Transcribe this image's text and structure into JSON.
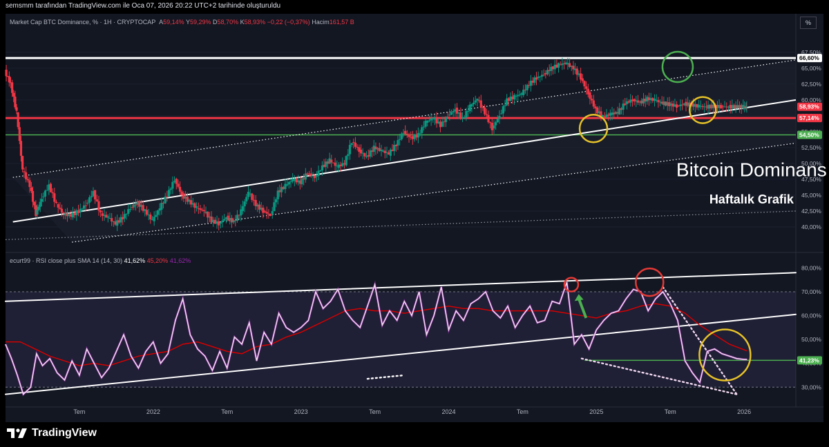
{
  "header": {
    "caption": "semsmm tarafından TradingView.com ile Oca 07, 2026 20:22 UTC+2 tarihinde oluşturuldu",
    "unit_button": "%"
  },
  "main_legend": {
    "title": "Market Cap BTC Dominance, % · 1H · CRYPTOCAP",
    "a_label": "A",
    "a_value": "59,14%",
    "y_label": "Y",
    "y_value": "59,29%",
    "d_label": "D",
    "d_value": "58,70%",
    "k_label": "K",
    "k_value": "58,93%",
    "change": "−0,22 (−0,37%)",
    "volume_label": "Hacim",
    "volume_value": "161,57 B"
  },
  "rsi_legend": {
    "title": "ecurt99 · RSI close plus SMA 14 (14, 30)",
    "v1": "41,62%",
    "v2": "45,20%",
    "v3": "41,62%"
  },
  "brand": {
    "name": "TradingView"
  },
  "colors": {
    "up": "#089981",
    "down": "#f23645",
    "accent_red": "#f23645",
    "accent_green": "#4caf50",
    "rsi_line": "#f1d9f0",
    "rsi_sma": "#d50000",
    "circle_green": "#4caf50",
    "circle_yellow": "#e6c229",
    "circle_red": "#e53935",
    "background": "#131722"
  },
  "chart_data": [
    {
      "type": "candlestick",
      "title": "Market Cap BTC Dominance, % · 1H · CRYPTOCAP",
      "y_unit": "%",
      "ylim": [
        37.5,
        69.0
      ],
      "y_ticks": [
        "40,00%",
        "42,50%",
        "45,00%",
        "47,50%",
        "50,00%",
        "52,50%",
        "55,00%",
        "57,50%",
        "60,00%",
        "62,50%",
        "65,00%",
        "67,50%"
      ],
      "price_labels": [
        {
          "text": "66,60%",
          "value": 66.6,
          "color": "#ffffff",
          "text_color": "#000000"
        },
        {
          "text": "58,93%",
          "value": 58.93,
          "color": "#f23645",
          "text_color": "#ffffff"
        },
        {
          "text": "57,14%",
          "value": 57.14,
          "color": "#f23645",
          "text_color": "#ffffff"
        },
        {
          "text": "54,50%",
          "value": 54.5,
          "color": "#4caf50",
          "text_color": "#ffffff"
        }
      ],
      "horizontal_levels": [
        {
          "value": 66.6,
          "color": "#ffffff"
        },
        {
          "value": 57.14,
          "color": "#f23645"
        },
        {
          "value": 54.5,
          "color": "#4caf50"
        }
      ],
      "x_ticks": [
        "Tem",
        "2022",
        "Tem",
        "2023",
        "Tem",
        "2024",
        "Tem",
        "2025",
        "Tem",
        "2026"
      ],
      "x_tick_dates": [
        2021.5,
        2022.0,
        2022.5,
        2023.0,
        2023.5,
        2024.0,
        2024.5,
        2025.0,
        2025.5,
        2026.0
      ],
      "x_range": [
        2021.0,
        2026.35
      ],
      "trend_lines": [
        {
          "style": "solid",
          "color": "#ffffff",
          "from": [
            2021.05,
            40.8
          ],
          "to": [
            2026.35,
            60.0
          ]
        },
        {
          "style": "dotted",
          "color": "#ffffff",
          "from": [
            2021.05,
            47.8
          ],
          "to": [
            2026.35,
            66.3
          ]
        },
        {
          "style": "dotted",
          "color": "#ffffff",
          "from": [
            2021.45,
            37.6
          ],
          "to": [
            2026.35,
            53.2
          ]
        },
        {
          "style": "dotted",
          "color": "#9598a1",
          "from": [
            2021.0,
            38.0
          ],
          "to": [
            2026.35,
            42.5
          ]
        }
      ],
      "annotations": [
        {
          "text": "Bitcoin Dominans",
          "x": 2026.05,
          "value": 48.0,
          "size": 28
        },
        {
          "text": "Haftalık Grafik",
          "x": 2026.05,
          "value": 43.7,
          "size": 18
        }
      ],
      "circles": [
        {
          "x": 2025.55,
          "value": 65.2,
          "r": 22,
          "color": "#4caf50"
        },
        {
          "x": 2024.98,
          "value": 55.5,
          "r": 20,
          "color": "#e6c229"
        },
        {
          "x": 2025.72,
          "value": 58.4,
          "r": 19,
          "color": "#e6c229"
        }
      ],
      "series": [
        {
          "name": "BTC Dominance",
          "x": [
            2021.0,
            2021.04,
            2021.08,
            2021.12,
            2021.17,
            2021.21,
            2021.25,
            2021.3,
            2021.35,
            2021.4,
            2021.45,
            2021.5,
            2021.55,
            2021.6,
            2021.65,
            2021.7,
            2021.75,
            2021.8,
            2021.85,
            2021.9,
            2021.95,
            2022.0,
            2022.05,
            2022.1,
            2022.15,
            2022.2,
            2022.25,
            2022.3,
            2022.35,
            2022.4,
            2022.45,
            2022.5,
            2022.55,
            2022.6,
            2022.65,
            2022.7,
            2022.75,
            2022.8,
            2022.85,
            2022.9,
            2022.95,
            2023.0,
            2023.05,
            2023.1,
            2023.15,
            2023.2,
            2023.25,
            2023.3,
            2023.35,
            2023.4,
            2023.45,
            2023.5,
            2023.55,
            2023.6,
            2023.65,
            2023.7,
            2023.75,
            2023.8,
            2023.85,
            2023.9,
            2023.95,
            2024.0,
            2024.05,
            2024.1,
            2024.15,
            2024.2,
            2024.25,
            2024.3,
            2024.35,
            2024.4,
            2024.45,
            2024.5,
            2024.55,
            2024.6,
            2024.65,
            2024.7,
            2024.75,
            2024.8,
            2024.85,
            2024.9,
            2024.95,
            2025.0,
            2025.05,
            2025.1,
            2025.15,
            2025.2,
            2025.25,
            2025.3,
            2025.35,
            2025.4,
            2025.45,
            2025.5,
            2025.55,
            2025.6,
            2025.65,
            2025.7,
            2025.75,
            2025.8,
            2025.85,
            2025.9,
            2025.95,
            2026.0,
            2026.02
          ],
          "y": [
            64.5,
            62.5,
            58.0,
            49.0,
            46.5,
            42.0,
            44.5,
            46.5,
            43.5,
            42.0,
            41.8,
            42.5,
            43.5,
            45.5,
            42.0,
            41.5,
            40.5,
            41.5,
            43.0,
            43.8,
            42.5,
            41.0,
            43.0,
            45.0,
            47.5,
            45.0,
            44.0,
            43.0,
            42.5,
            41.0,
            40.5,
            41.5,
            40.8,
            42.5,
            45.5,
            43.5,
            42.5,
            41.8,
            45.5,
            46.5,
            47.5,
            47.0,
            48.5,
            47.8,
            49.5,
            50.5,
            49.5,
            50.0,
            53.5,
            52.0,
            51.0,
            52.5,
            52.0,
            51.5,
            53.0,
            55.0,
            54.0,
            54.5,
            56.5,
            57.2,
            56.0,
            57.5,
            58.5,
            57.0,
            59.0,
            60.2,
            58.0,
            55.5,
            57.5,
            60.0,
            60.5,
            61.0,
            62.5,
            63.5,
            64.0,
            65.0,
            65.5,
            65.8,
            65.0,
            63.5,
            61.0,
            58.5,
            57.3,
            57.8,
            58.0,
            59.5,
            60.0,
            59.6,
            60.2,
            60.0,
            59.5,
            59.3,
            59.0,
            59.4,
            59.2,
            59.0,
            58.9,
            59.0,
            58.93,
            58.93,
            58.93,
            58.93,
            58.93
          ]
        }
      ]
    },
    {
      "type": "line",
      "title": "ecurt99 · RSI close plus SMA 14 (14, 30)",
      "y_unit": "%",
      "ylim": [
        24.0,
        83.0
      ],
      "y_ticks": [
        "30,00%",
        "40,00%",
        "50,00%",
        "60,00%",
        "70,00%",
        "80,00%"
      ],
      "band": [
        30,
        70
      ],
      "price_labels": [
        {
          "text": "41,23%",
          "value": 41.23,
          "color": "#4caf50",
          "text_color": "#ffffff"
        }
      ],
      "horizontal_levels": [
        {
          "value": 41.23,
          "color": "#4caf50"
        }
      ],
      "trend_lines": [
        {
          "style": "solid",
          "color": "#ffffff",
          "from": [
            2021.0,
            66.0
          ],
          "to": [
            2026.35,
            78.0
          ]
        },
        {
          "style": "solid",
          "color": "#ffffff",
          "from": [
            2021.0,
            27.0
          ],
          "to": [
            2026.35,
            60.5
          ]
        },
        {
          "style": "dotted",
          "color": "#f1d9f0",
          "from": [
            2024.9,
            42.0
          ],
          "to": [
            2025.95,
            27.0
          ]
        },
        {
          "style": "dotted",
          "color": "#f1d9f0",
          "from": [
            2025.45,
            72.0
          ],
          "to": [
            2025.95,
            27.0
          ]
        },
        {
          "style": "dotted",
          "color": "#ffffff",
          "from": [
            2023.45,
            33.5
          ],
          "to": [
            2023.7,
            35.0
          ]
        }
      ],
      "circles": [
        {
          "x": 2024.83,
          "value": 73.0,
          "r": 10,
          "color": "#e53935"
        },
        {
          "x": 2025.36,
          "value": 74.0,
          "r": 20,
          "color": "#e53935"
        },
        {
          "x": 2025.87,
          "value": 43.5,
          "r": 37,
          "color": "#e6c229"
        }
      ],
      "arrow": {
        "from": [
          2024.93,
          59.0
        ],
        "to": [
          2024.88,
          69.0
        ],
        "color": "#4caf50"
      },
      "series": [
        {
          "name": "RSI",
          "x": [
            2021.0,
            2021.04,
            2021.08,
            2021.12,
            2021.17,
            2021.21,
            2021.25,
            2021.3,
            2021.35,
            2021.4,
            2021.45,
            2021.5,
            2021.55,
            2021.6,
            2021.65,
            2021.7,
            2021.75,
            2021.8,
            2021.85,
            2021.9,
            2021.95,
            2022.0,
            2022.05,
            2022.1,
            2022.15,
            2022.2,
            2022.25,
            2022.3,
            2022.35,
            2022.4,
            2022.45,
            2022.5,
            2022.55,
            2022.6,
            2022.65,
            2022.7,
            2022.75,
            2022.8,
            2022.85,
            2022.9,
            2022.95,
            2023.0,
            2023.05,
            2023.1,
            2023.15,
            2023.2,
            2023.25,
            2023.3,
            2023.35,
            2023.4,
            2023.45,
            2023.5,
            2023.55,
            2023.6,
            2023.65,
            2023.7,
            2023.75,
            2023.8,
            2023.85,
            2023.9,
            2023.95,
            2024.0,
            2024.05,
            2024.1,
            2024.15,
            2024.2,
            2024.25,
            2024.3,
            2024.35,
            2024.4,
            2024.45,
            2024.5,
            2024.55,
            2024.6,
            2024.65,
            2024.7,
            2024.75,
            2024.8,
            2024.85,
            2024.9,
            2024.95,
            2025.0,
            2025.05,
            2025.1,
            2025.15,
            2025.2,
            2025.25,
            2025.3,
            2025.35,
            2025.4,
            2025.45,
            2025.5,
            2025.55,
            2025.6,
            2025.65,
            2025.7,
            2025.75,
            2025.8,
            2025.85,
            2025.9,
            2025.95,
            2026.0,
            2026.02
          ],
          "y": [
            48,
            42,
            35,
            27,
            30,
            44,
            39,
            42,
            36,
            33,
            41,
            35,
            46,
            40,
            34,
            38,
            45,
            52,
            43,
            38,
            45,
            49,
            40,
            44,
            58,
            67,
            52,
            46,
            43,
            37,
            45,
            38,
            51,
            48,
            57,
            41,
            53,
            48,
            61,
            55,
            53,
            55,
            58,
            70,
            63,
            66,
            71,
            62,
            58,
            55,
            64,
            73,
            56,
            62,
            58,
            66,
            60,
            70,
            52,
            60,
            72,
            54,
            62,
            58,
            65,
            67,
            70,
            62,
            59,
            64,
            55,
            60,
            64,
            57,
            58,
            66,
            65,
            74,
            48,
            52,
            46,
            54,
            58,
            61,
            62,
            67,
            71,
            70,
            62,
            67,
            70,
            65,
            58,
            41,
            36,
            32,
            45,
            46,
            44,
            43,
            42,
            41.6,
            41.62
          ]
        },
        {
          "name": "SMA 14",
          "x": [
            2021.0,
            2021.1,
            2021.2,
            2021.3,
            2021.4,
            2021.5,
            2021.6,
            2021.7,
            2021.8,
            2021.9,
            2022.0,
            2022.1,
            2022.2,
            2022.3,
            2022.4,
            2022.5,
            2022.6,
            2022.7,
            2022.8,
            2022.9,
            2023.0,
            2023.1,
            2023.2,
            2023.3,
            2023.4,
            2023.5,
            2023.6,
            2023.7,
            2023.8,
            2023.9,
            2024.0,
            2024.1,
            2024.2,
            2024.3,
            2024.4,
            2024.5,
            2024.6,
            2024.7,
            2024.8,
            2024.9,
            2025.0,
            2025.1,
            2025.2,
            2025.3,
            2025.4,
            2025.5,
            2025.6,
            2025.7,
            2025.8,
            2025.9,
            2026.02
          ],
          "y": [
            49,
            49,
            46,
            43,
            41,
            39,
            40,
            39,
            41,
            43,
            44,
            45,
            48,
            49,
            47,
            45,
            44,
            47,
            48,
            51,
            53,
            56,
            59,
            62,
            63,
            62,
            62,
            61,
            62,
            63,
            64,
            63,
            63,
            62,
            62,
            62,
            62,
            62,
            61,
            60,
            59,
            61,
            62,
            64,
            65,
            64,
            61,
            56,
            52,
            48,
            45.2
          ]
        }
      ]
    }
  ]
}
